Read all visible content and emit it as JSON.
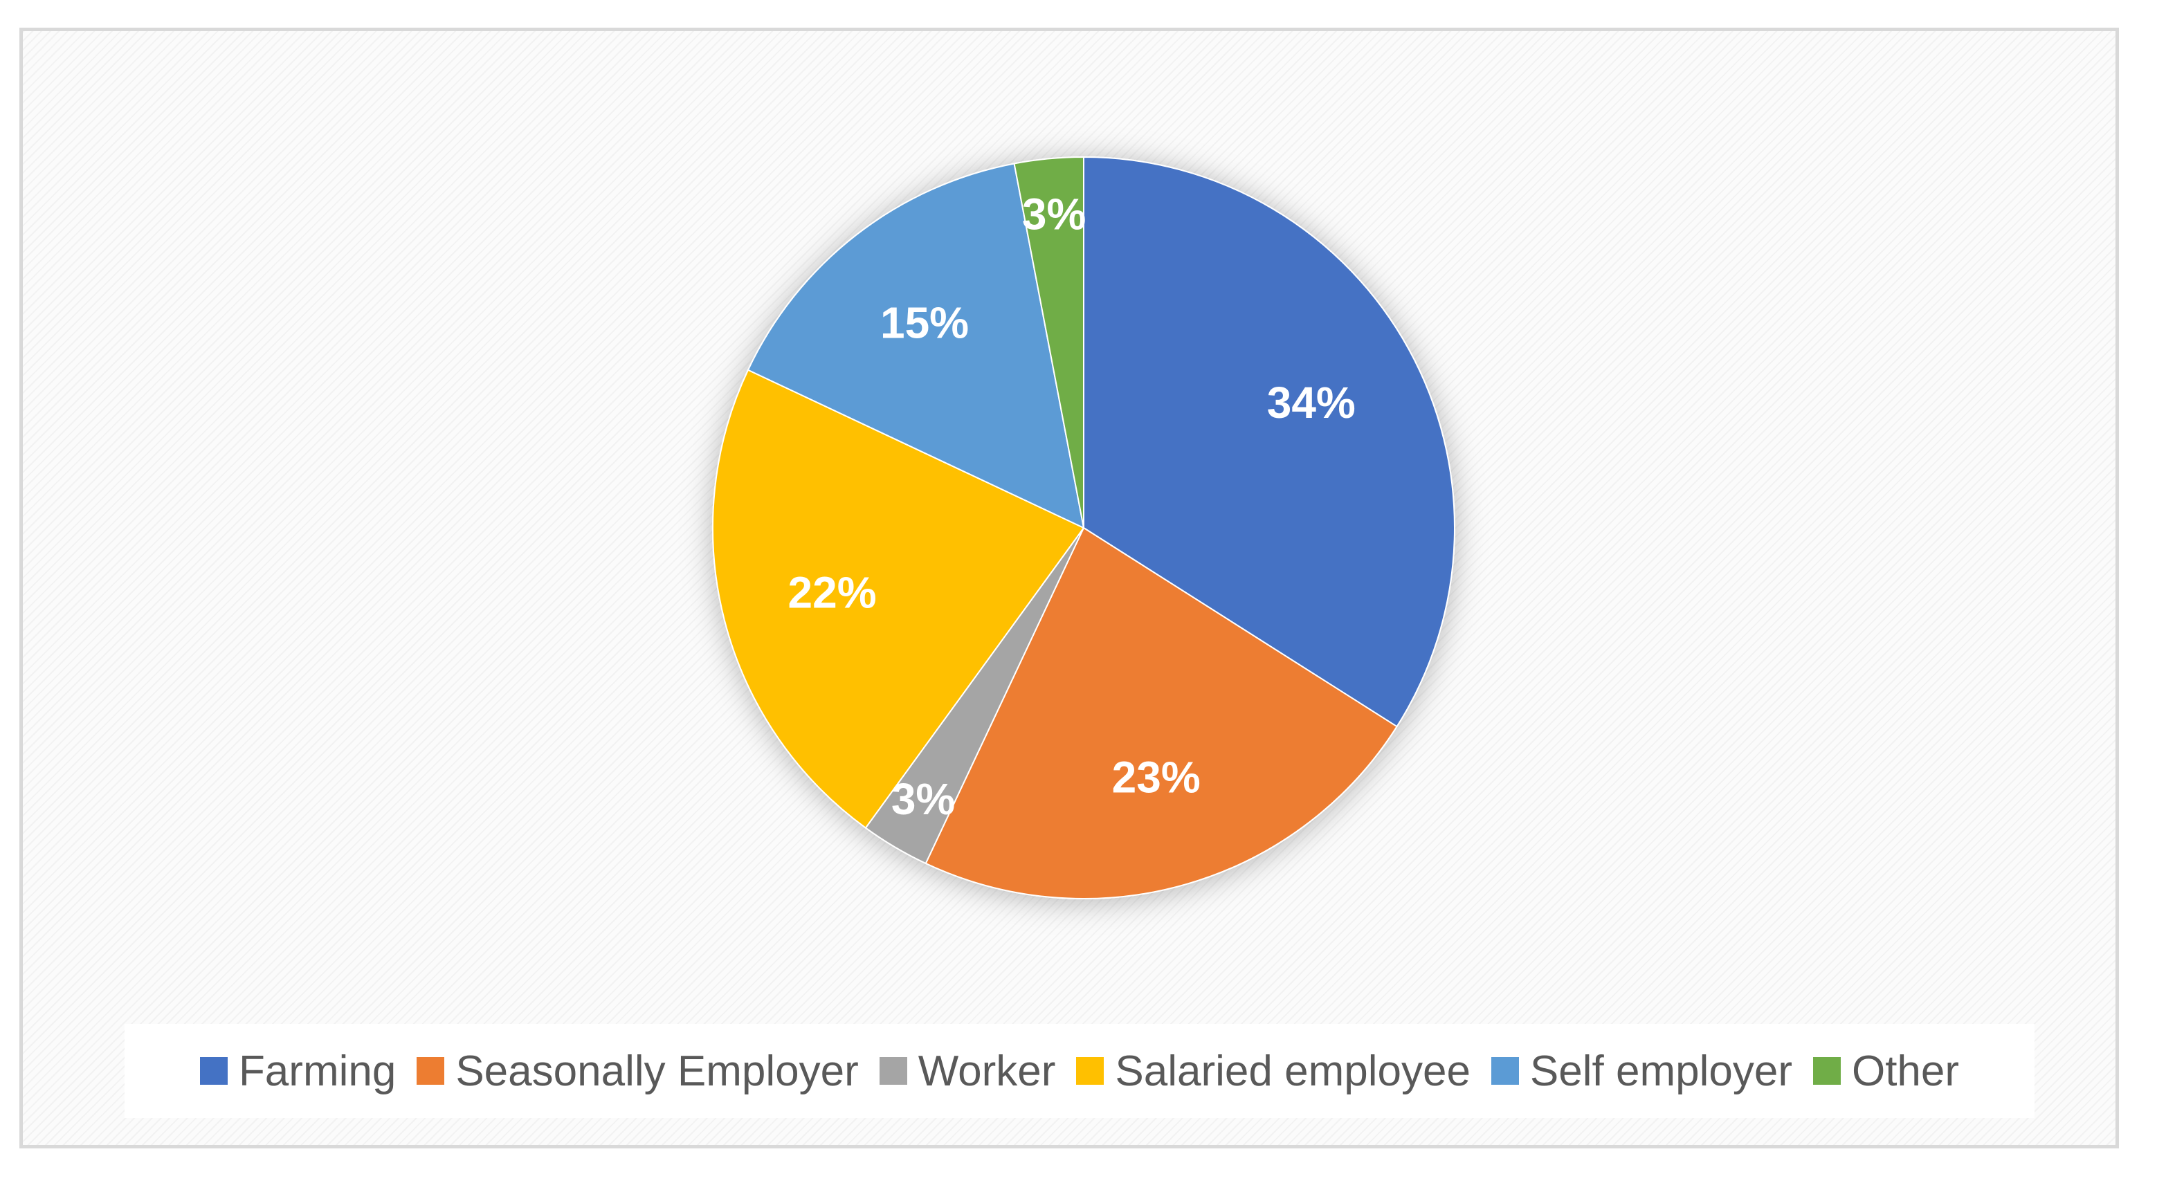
{
  "chart_data": {
    "type": "pie",
    "title": "",
    "legend_position": "bottom",
    "categories": [
      "Farming",
      "Seasonally Employer",
      "Worker",
      "Salaried employee",
      "Self employer",
      "Other"
    ],
    "values": [
      34,
      23,
      3,
      22,
      15,
      3
    ],
    "value_labels": [
      "34%",
      "23%",
      "3%",
      "22%",
      "15%",
      "3%"
    ],
    "colors": [
      "#4472c4",
      "#ed7d31",
      "#a5a5a5",
      "#ffc000",
      "#5b9bd5",
      "#70ad47"
    ]
  }
}
